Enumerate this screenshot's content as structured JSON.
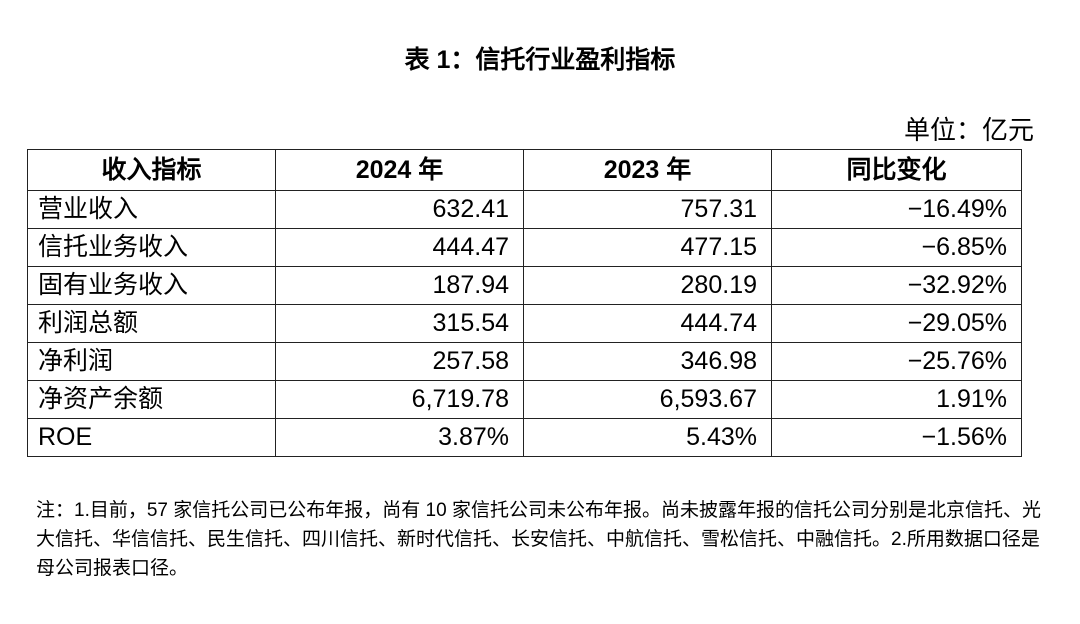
{
  "title": "表 1：信托行业盈利指标",
  "unit": "单位：亿元",
  "table": {
    "headers": [
      "收入指标",
      "2024 年",
      "2023 年",
      "同比变化"
    ],
    "rows": [
      [
        "营业收入",
        "632.41",
        "757.31",
        "−16.49%"
      ],
      [
        "信托业务收入",
        "444.47",
        "477.15",
        "−6.85%"
      ],
      [
        "固有业务收入",
        "187.94",
        "280.19",
        "−32.92%"
      ],
      [
        "利润总额",
        "315.54",
        "444.74",
        "−29.05%"
      ],
      [
        "净利润",
        "257.58",
        "346.98",
        "−25.76%"
      ],
      [
        "净资产余额",
        "6,719.78",
        "6,593.67",
        "1.91%"
      ],
      [
        "ROE",
        "3.87%",
        "5.43%",
        "−1.56%"
      ]
    ]
  },
  "note": "注：1.目前，57 家信托公司已公布年报，尚有 10 家信托公司未公布年报。尚未披露年报的信托公司分别是北京信托、光大信托、华信信托、民生信托、四川信托、新时代信托、长安信托、中航信托、雪松信托、中融信托。2.所用数据口径是母公司报表口径。"
}
